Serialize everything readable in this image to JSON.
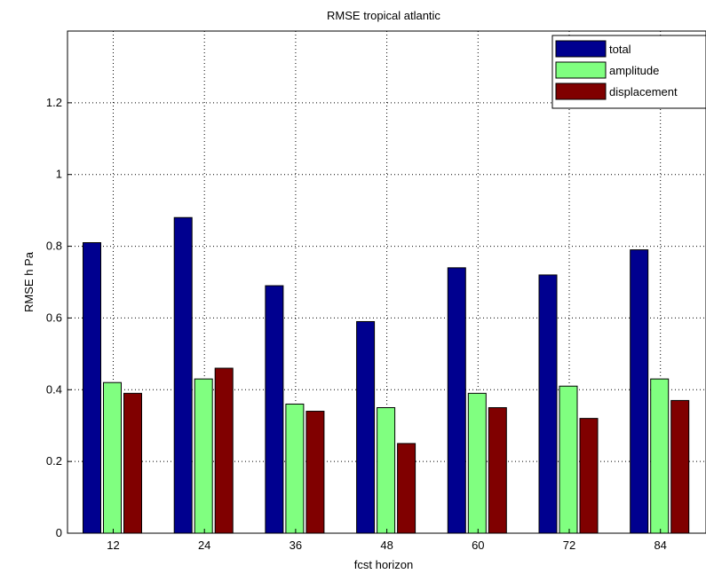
{
  "chart_data": {
    "type": "bar",
    "title": "RMSE tropical atlantic",
    "xlabel": "fcst horizon",
    "ylabel": "RMSE h Pa",
    "categories": [
      "12",
      "24",
      "36",
      "48",
      "60",
      "72",
      "84"
    ],
    "series": [
      {
        "name": "total",
        "color": "#00008f",
        "values": [
          0.81,
          0.88,
          0.69,
          0.59,
          0.74,
          0.72,
          0.79
        ]
      },
      {
        "name": "amplitude",
        "color": "#80ff80",
        "values": [
          0.42,
          0.43,
          0.36,
          0.35,
          0.39,
          0.41,
          0.43
        ]
      },
      {
        "name": "displacement",
        "color": "#800000",
        "values": [
          0.39,
          0.46,
          0.34,
          0.25,
          0.35,
          0.32,
          0.37
        ]
      }
    ],
    "ylim": [
      0,
      1.4
    ],
    "yticks": [
      0,
      0.2,
      0.4,
      0.6,
      0.8,
      1,
      1.2
    ],
    "ytick_labels": [
      "0",
      "0.2",
      "0.4",
      "0.6",
      "0.8",
      "1",
      "1.2"
    ],
    "grid": true,
    "legend_position": "top-right"
  }
}
